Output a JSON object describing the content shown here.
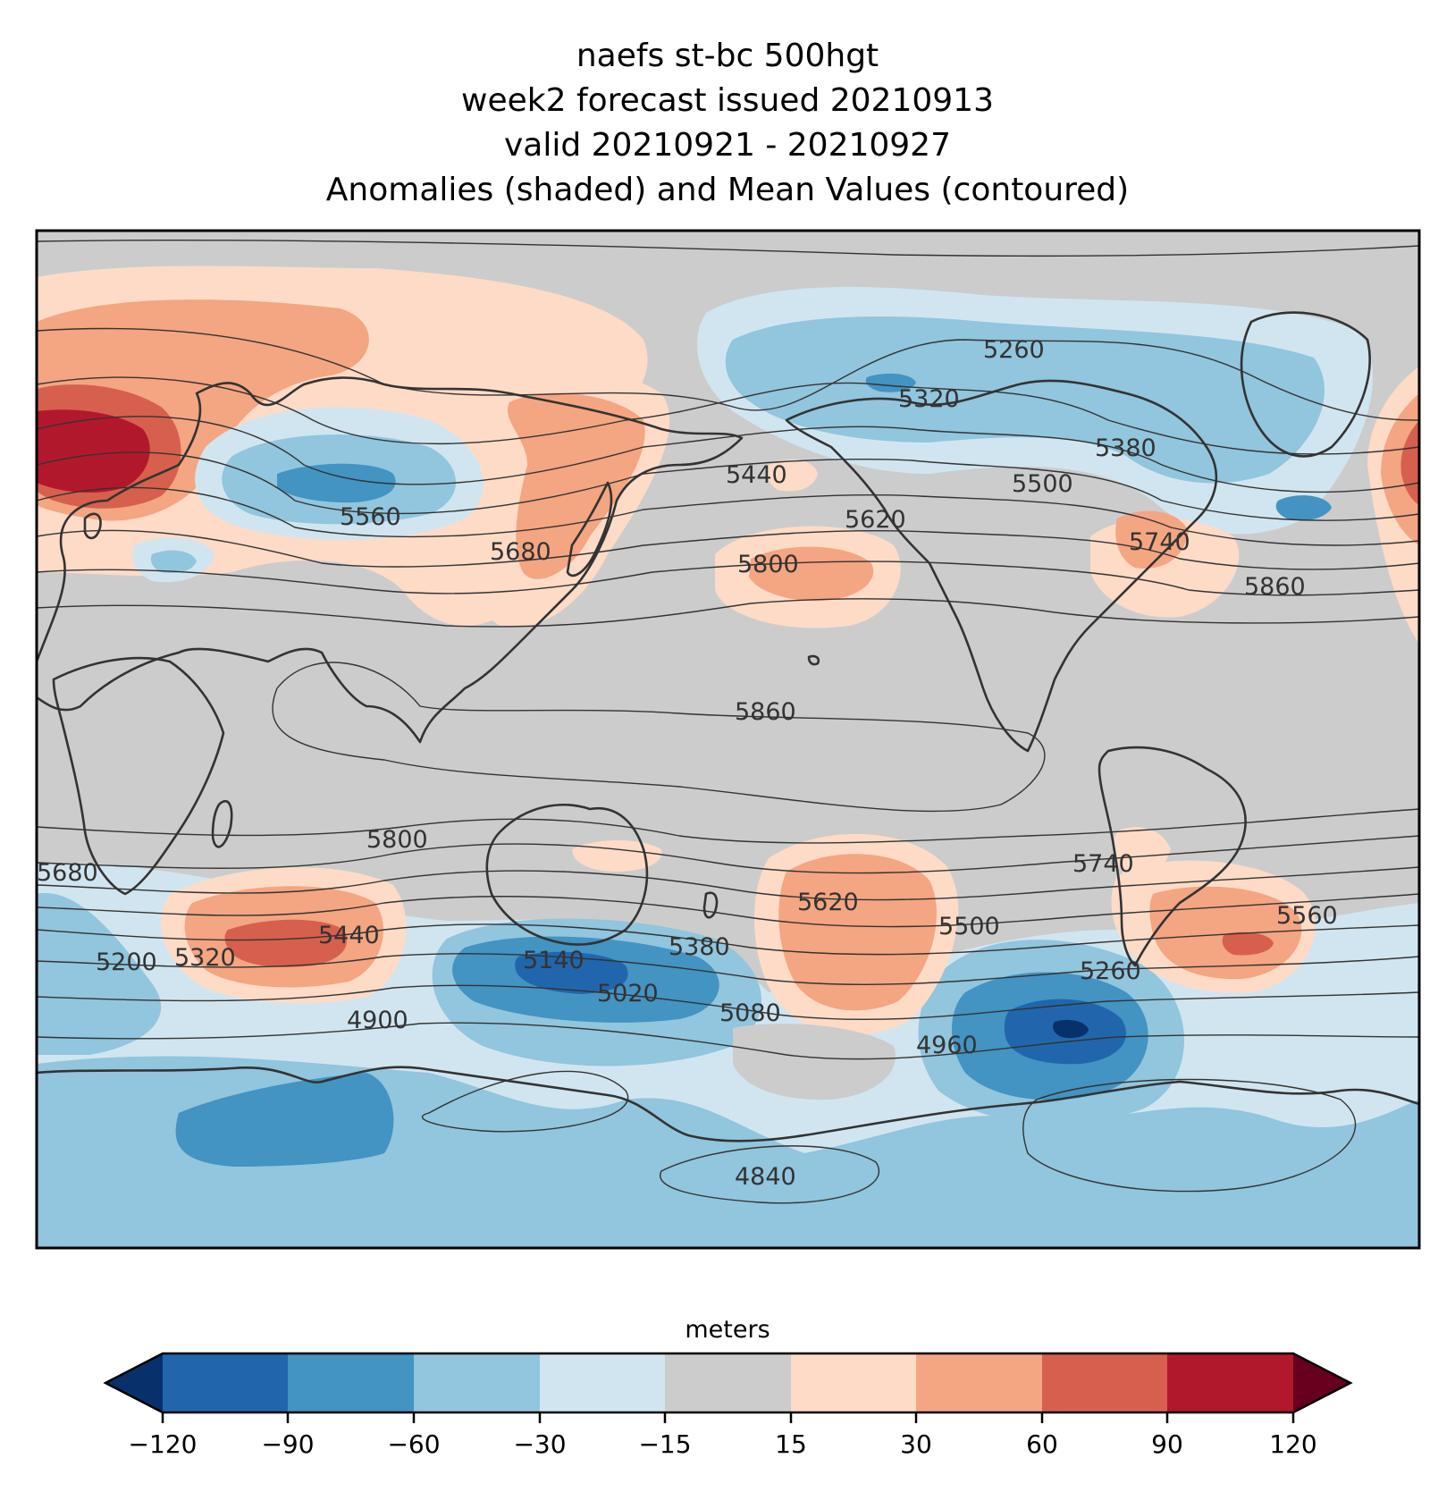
{
  "title": {
    "line1": "naefs st-bc 500hgt",
    "line2": "week2 forecast issued 20210913",
    "line3": "valid 20210921 - 20210927",
    "line4": "Anomalies (shaded) and Mean Values (contoured)"
  },
  "colors": {
    "background": "#cccccc",
    "neg120": "#08306b",
    "neg90": "#2166ac",
    "neg60": "#4393c3",
    "neg30": "#92c5de",
    "neg15": "#d1e5f0",
    "neutral": "#cccccc",
    "pos15": "#fddbc7",
    "pos30": "#f4a582",
    "pos60": "#d6604d",
    "pos90": "#b2182b",
    "pos120": "#67001f",
    "coast": "#333333"
  },
  "contour_labels": [
    "5260",
    "5320",
    "5380",
    "5440",
    "5500",
    "5560",
    "5620",
    "5680",
    "5740",
    "5800",
    "5860",
    "5860",
    "5800",
    "5740",
    "5680",
    "5620",
    "5560",
    "5500",
    "5440",
    "5380",
    "5320",
    "5260",
    "5200",
    "5140",
    "5080",
    "5020",
    "4960",
    "4900",
    "4840"
  ],
  "colorbar": {
    "label": "meters",
    "ticks": [
      "−120",
      "−90",
      "−60",
      "−30",
      "−15",
      "15",
      "30",
      "60",
      "90",
      "120"
    ]
  }
}
